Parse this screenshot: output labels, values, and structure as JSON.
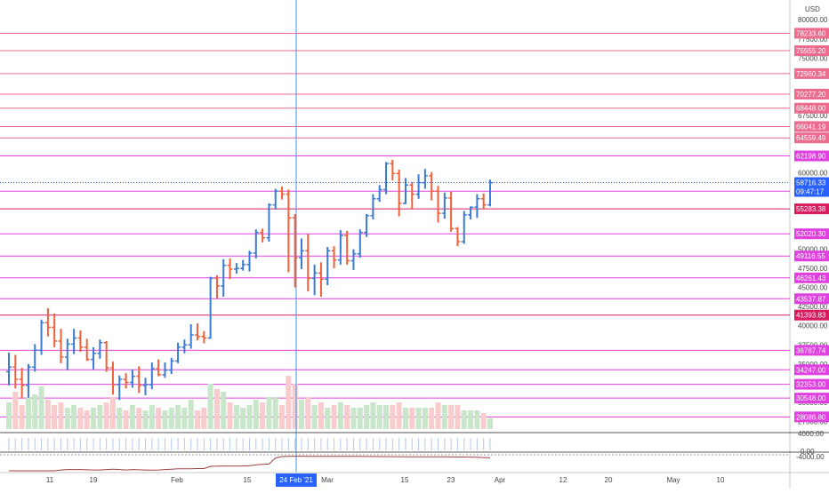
{
  "currency_label": "USD",
  "colors": {
    "up": "#3a7bd5",
    "down": "#f0603a",
    "vol_up": "#c8e6c9",
    "vol_down": "#f8cccc",
    "osc": "#a04040",
    "crosshair": "#4a90e2"
  },
  "axis_ticks": [
    "80000.00",
    "77500.00",
    "75000.00",
    "67500.00",
    "60000.00",
    "57500.00",
    "50000.00",
    "47500.00",
    "45000.00",
    "42500.00",
    "40000.00",
    "37500.00",
    "35000.00",
    "32500.00",
    "30000.00",
    "27500.00"
  ],
  "levels": [
    {
      "label": "78233.60",
      "color": "#ec6b8e"
    },
    {
      "label": "75955.20",
      "color": "#ec6b8e"
    },
    {
      "label": "72960.34",
      "color": "#ec6b8e"
    },
    {
      "label": "70277.20",
      "color": "#ec6b8e"
    },
    {
      "label": "68448.00",
      "color": "#ec6b8e"
    },
    {
      "label": "66041.19",
      "color": "#ec6b8e"
    },
    {
      "label": "64559.49",
      "color": "#ec6b8e"
    },
    {
      "label": "62198.90",
      "color": "#e040e0"
    },
    {
      "label": "57588.30",
      "color": "#e040e0"
    },
    {
      "label": "55283.38",
      "color": "#d81b60"
    },
    {
      "label": "52020.30",
      "color": "#e040e0"
    },
    {
      "label": "49116.55",
      "color": "#e040e0"
    },
    {
      "label": "46261.43",
      "color": "#e040e0"
    },
    {
      "label": "43537.87",
      "color": "#e040e0"
    },
    {
      "label": "41393.83",
      "color": "#d81b60"
    },
    {
      "label": "36787.74",
      "color": "#e040e0"
    },
    {
      "label": "34247.00",
      "color": "#e040e0"
    },
    {
      "label": "32353.00",
      "color": "#e040e0"
    },
    {
      "label": "30548.00",
      "color": "#e040e0"
    },
    {
      "label": "28086.80",
      "color": "#e040e0"
    }
  ],
  "current_price": {
    "label": "58716.33",
    "countdown": "09:47:17",
    "color": "#2962ff"
  },
  "volume_axis": "4000.00",
  "osc_axis": [
    "0.00",
    "-4000.00"
  ],
  "x_labels": [
    "11",
    "19",
    "Feb",
    "15",
    "Mar",
    "15",
    "23",
    "Apr",
    "12",
    "20",
    "May",
    "10"
  ],
  "crosshair_date": "24 Feb '21",
  "chart_data": {
    "type": "ohlc",
    "ylim": [
      26500,
      82000
    ],
    "levels": [
      78233.6,
      75955.2,
      72960.34,
      70277.2,
      68448.0,
      66041.19,
      64559.49,
      62198.9,
      57588.3,
      55283.38,
      52020.3,
      49116.55,
      46261.43,
      43537.87,
      41393.83,
      36787.74,
      34247.0,
      32353.0,
      30548.0,
      28086.8
    ],
    "current_price": 58716.33,
    "ohlc": [
      [
        34000,
        36500,
        32200,
        34600
      ],
      [
        34600,
        36200,
        31800,
        33000
      ],
      [
        33000,
        34500,
        30500,
        32200
      ],
      [
        32200,
        35000,
        30600,
        34600
      ],
      [
        34600,
        37600,
        34000,
        36800
      ],
      [
        36800,
        40800,
        36200,
        40400
      ],
      [
        40400,
        42300,
        38600,
        39800
      ],
      [
        39800,
        41600,
        37200,
        38000
      ],
      [
        38000,
        39600,
        35100,
        35900
      ],
      [
        35900,
        38300,
        34200,
        37600
      ],
      [
        37600,
        39600,
        36300,
        38400
      ],
      [
        38400,
        39400,
        36600,
        37200
      ],
      [
        37200,
        38300,
        35400,
        35600
      ],
      [
        35600,
        37200,
        34300,
        36400
      ],
      [
        36400,
        38200,
        35700,
        37800
      ],
      [
        37800,
        38000,
        34000,
        34500
      ],
      [
        34500,
        35300,
        31000,
        32300
      ],
      [
        32300,
        33500,
        30300,
        33000
      ],
      [
        33000,
        33800,
        31800,
        32600
      ],
      [
        32600,
        34300,
        31900,
        33400
      ],
      [
        33400,
        34700,
        31200,
        32200
      ],
      [
        32200,
        33200,
        30900,
        32300
      ],
      [
        32300,
        35200,
        31700,
        34400
      ],
      [
        34400,
        35600,
        33400,
        33600
      ],
      [
        33600,
        35200,
        33200,
        34200
      ],
      [
        34200,
        35800,
        33700,
        35400
      ],
      [
        35400,
        37800,
        35100,
        37200
      ],
      [
        37200,
        38200,
        36400,
        37500
      ],
      [
        37500,
        40200,
        37000,
        38800
      ],
      [
        38800,
        40300,
        38100,
        38600
      ],
      [
        38600,
        39300,
        37700,
        38400
      ],
      [
        38400,
        46400,
        38300,
        46200
      ],
      [
        46200,
        46600,
        43600,
        45200
      ],
      [
        45200,
        48700,
        43800,
        47900
      ],
      [
        47900,
        48800,
        46100,
        47400
      ],
      [
        47400,
        48200,
        46800,
        47500
      ],
      [
        47500,
        48600,
        47200,
        48000
      ],
      [
        48000,
        49800,
        47100,
        49500
      ],
      [
        49500,
        52600,
        48800,
        52200
      ],
      [
        52200,
        52700,
        50900,
        51500
      ],
      [
        51500,
        56000,
        51000,
        55800
      ],
      [
        55800,
        57900,
        55200,
        57600
      ],
      [
        57600,
        58200,
        56500,
        57200
      ],
      [
        57200,
        57800,
        47000,
        54100
      ],
      [
        54100,
        54600,
        45000,
        48900
      ],
      [
        48900,
        51400,
        47400,
        49800
      ],
      [
        49800,
        52000,
        44500,
        46200
      ],
      [
        46200,
        48000,
        44000,
        46900
      ],
      [
        46900,
        48300,
        43800,
        46100
      ],
      [
        46100,
        50300,
        45300,
        49800
      ],
      [
        49800,
        50400,
        47500,
        48600
      ],
      [
        48600,
        52500,
        48000,
        51800
      ],
      [
        51800,
        52400,
        48000,
        48500
      ],
      [
        48500,
        50000,
        47300,
        49400
      ],
      [
        49400,
        52600,
        48900,
        52200
      ],
      [
        52200,
        54600,
        51600,
        54400
      ],
      [
        54400,
        57200,
        53900,
        56600
      ],
      [
        56600,
        58400,
        56200,
        57800
      ],
      [
        57800,
        61400,
        57200,
        61200
      ],
      [
        61200,
        61700,
        59000,
        59900
      ],
      [
        59900,
        60400,
        54300,
        56000
      ],
      [
        56000,
        59300,
        55900,
        58400
      ],
      [
        58400,
        58800,
        55300,
        57200
      ],
      [
        57200,
        59800,
        56600,
        58700
      ],
      [
        58700,
        60500,
        57900,
        59600
      ],
      [
        59600,
        60100,
        56400,
        57600
      ],
      [
        57600,
        58300,
        53500,
        54700
      ],
      [
        54700,
        57400,
        54000,
        56700
      ],
      [
        56700,
        57500,
        52300,
        52700
      ],
      [
        52700,
        52900,
        50400,
        51000
      ],
      [
        51000,
        55000,
        50700,
        54500
      ],
      [
        54500,
        55600,
        53900,
        55500
      ],
      [
        55500,
        57200,
        54100,
        56600
      ],
      [
        56600,
        57300,
        55300,
        55800
      ],
      [
        55800,
        59100,
        55600,
        58700
      ]
    ],
    "volume": [
      10,
      14,
      9,
      12,
      13,
      16,
      11,
      9,
      10,
      8,
      9,
      8,
      7,
      8,
      9,
      10,
      12,
      8,
      7,
      9,
      8,
      7,
      9,
      8,
      7,
      8,
      9,
      8,
      11,
      7,
      8,
      17,
      15,
      14,
      10,
      9,
      8,
      9,
      11,
      10,
      12,
      12,
      9,
      20,
      17,
      11,
      12,
      9,
      10,
      8,
      9,
      10,
      9,
      8,
      8,
      9,
      10,
      9,
      9,
      9,
      10,
      8,
      8,
      8,
      8,
      8,
      10,
      9,
      9,
      9,
      7,
      7,
      7,
      6,
      4
    ],
    "oscillator": [
      -4000,
      -4000,
      -4000,
      -4000,
      -4000,
      -4000,
      -4000,
      -4000,
      -3800,
      -3700,
      -3700,
      -3700,
      -3750,
      -3800,
      -3800,
      -3700,
      -3600,
      -3700,
      -3800,
      -3700,
      -3750,
      -3800,
      -3850,
      -3800,
      -3700,
      -3600,
      -3500,
      -3500,
      -3500,
      -3450,
      -3450,
      -2900,
      -2850,
      -2800,
      -2800,
      -2800,
      -2800,
      -2750,
      -2500,
      -2400,
      -2300,
      -800,
      -450,
      -400,
      -350,
      -360,
      -370,
      -380,
      -380,
      -380,
      -380,
      -380,
      -390,
      -400,
      -410,
      -420,
      -430,
      -440,
      -450,
      -460,
      -470,
      -480,
      -480,
      -480,
      -490,
      -500,
      -510,
      -520,
      -540,
      -560,
      -560,
      -580,
      -620,
      -680,
      -750
    ]
  }
}
